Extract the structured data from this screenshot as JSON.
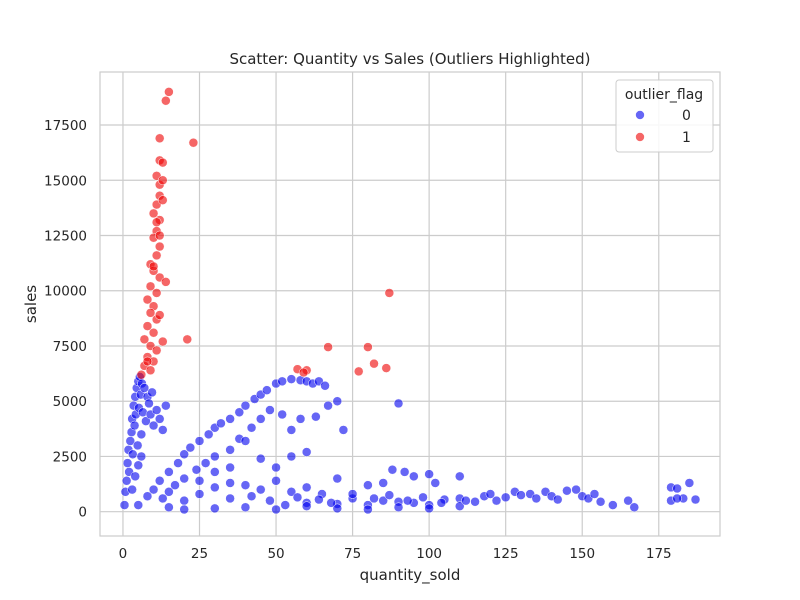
{
  "chart_data": {
    "type": "scatter",
    "title": "Scatter: Quantity vs Sales (Outliers Highlighted)",
    "xlabel": "quantity_sold",
    "ylabel": "sales",
    "xlim": [
      -7.5,
      195
    ],
    "ylim": [
      -1100,
      19900
    ],
    "x_ticks": [
      0,
      25,
      50,
      75,
      100,
      125,
      150,
      175
    ],
    "y_ticks": [
      0,
      2500,
      5000,
      7500,
      10000,
      12500,
      15000,
      17500
    ],
    "grid": true,
    "legend": {
      "title": "outlier_flag",
      "position": "top-right",
      "entries": [
        {
          "label": "0",
          "color": "#0000ee"
        },
        {
          "label": "1",
          "color": "#ee0000"
        }
      ]
    },
    "series": [
      {
        "name": "0",
        "color": "#0000ee",
        "points": [
          [
            0.5,
            300
          ],
          [
            0.8,
            900
          ],
          [
            1.2,
            1400
          ],
          [
            1.5,
            2200
          ],
          [
            1.8,
            2800
          ],
          [
            2.0,
            1800
          ],
          [
            2.4,
            3200
          ],
          [
            2.8,
            3600
          ],
          [
            3.0,
            4200
          ],
          [
            3.2,
            2600
          ],
          [
            3.5,
            4800
          ],
          [
            3.8,
            3900
          ],
          [
            4.0,
            5200
          ],
          [
            4.2,
            4400
          ],
          [
            4.5,
            5600
          ],
          [
            4.8,
            3000
          ],
          [
            5.0,
            5900
          ],
          [
            5.2,
            4700
          ],
          [
            5.5,
            6100
          ],
          [
            5.8,
            5300
          ],
          [
            6.0,
            3500
          ],
          [
            6.2,
            5800
          ],
          [
            6.5,
            4500
          ],
          [
            7.0,
            5600
          ],
          [
            7.5,
            4100
          ],
          [
            8.0,
            5200
          ],
          [
            8.5,
            4900
          ],
          [
            9.0,
            4400
          ],
          [
            9.5,
            5400
          ],
          [
            10.0,
            3900
          ],
          [
            11.0,
            4600
          ],
          [
            12.0,
            4200
          ],
          [
            13.0,
            3700
          ],
          [
            14.0,
            4800
          ],
          [
            3.0,
            1000
          ],
          [
            4.0,
            1600
          ],
          [
            5.0,
            2100
          ],
          [
            6.0,
            2500
          ],
          [
            5,
            300
          ],
          [
            8,
            700
          ],
          [
            10,
            1000
          ],
          [
            12,
            1400
          ],
          [
            15,
            1800
          ],
          [
            18,
            2200
          ],
          [
            20,
            2600
          ],
          [
            22,
            2900
          ],
          [
            25,
            3200
          ],
          [
            28,
            3500
          ],
          [
            30,
            3800
          ],
          [
            32,
            4000
          ],
          [
            35,
            4200
          ],
          [
            38,
            4500
          ],
          [
            40,
            4800
          ],
          [
            43,
            5100
          ],
          [
            45,
            5300
          ],
          [
            47,
            5500
          ],
          [
            50,
            5800
          ],
          [
            52,
            5900
          ],
          [
            55,
            6000
          ],
          [
            58,
            5950
          ],
          [
            60,
            5900
          ],
          [
            62,
            5800
          ],
          [
            64,
            5900
          ],
          [
            66,
            5700
          ],
          [
            70,
            5000
          ],
          [
            72,
            3700
          ],
          [
            67,
            4800
          ],
          [
            63,
            4300
          ],
          [
            58,
            4200
          ],
          [
            55,
            3700
          ],
          [
            52,
            4400
          ],
          [
            48,
            4600
          ],
          [
            45,
            4200
          ],
          [
            42,
            3800
          ],
          [
            38,
            3300
          ],
          [
            35,
            2800
          ],
          [
            30,
            2500
          ],
          [
            27,
            2200
          ],
          [
            24,
            1900
          ],
          [
            20,
            1500
          ],
          [
            17,
            1200
          ],
          [
            15,
            900
          ],
          [
            13,
            600
          ],
          [
            15,
            200
          ],
          [
            20,
            500
          ],
          [
            25,
            800
          ],
          [
            30,
            1100
          ],
          [
            35,
            1300
          ],
          [
            40,
            1200
          ],
          [
            45,
            1000
          ],
          [
            50,
            1400
          ],
          [
            55,
            900
          ],
          [
            60,
            1100
          ],
          [
            65,
            800
          ],
          [
            70,
            1500
          ],
          [
            75,
            600
          ],
          [
            80,
            1200
          ],
          [
            85,
            1300
          ],
          [
            88,
            1900
          ],
          [
            92,
            1800
          ],
          [
            95,
            1600
          ],
          [
            100,
            1700
          ],
          [
            102,
            1300
          ],
          [
            110,
            1600
          ],
          [
            90,
            4900
          ],
          [
            45,
            2400
          ],
          [
            60,
            2700
          ],
          [
            40,
            3200
          ],
          [
            50,
            2000
          ],
          [
            30,
            1800
          ],
          [
            25,
            1400
          ],
          [
            35,
            2000
          ],
          [
            55,
            2500
          ],
          [
            60,
            400
          ],
          [
            70,
            350
          ],
          [
            80,
            300
          ],
          [
            85,
            500
          ],
          [
            90,
            450
          ],
          [
            95,
            400
          ],
          [
            100,
            300
          ],
          [
            105,
            550
          ],
          [
            110,
            600
          ],
          [
            115,
            450
          ],
          [
            118,
            700
          ],
          [
            120,
            800
          ],
          [
            122,
            500
          ],
          [
            125,
            650
          ],
          [
            128,
            900
          ],
          [
            130,
            750
          ],
          [
            133,
            800
          ],
          [
            135,
            600
          ],
          [
            138,
            900
          ],
          [
            140,
            700
          ],
          [
            142,
            550
          ],
          [
            145,
            950
          ],
          [
            148,
            1000
          ],
          [
            150,
            700
          ],
          [
            152,
            600
          ],
          [
            154,
            800
          ],
          [
            156,
            450
          ],
          [
            160,
            300
          ],
          [
            165,
            500
          ],
          [
            167,
            200
          ],
          [
            179,
            1100
          ],
          [
            181,
            1050
          ],
          [
            183,
            600
          ],
          [
            185,
            1300
          ],
          [
            187,
            550
          ],
          [
            179,
            500
          ],
          [
            181,
            600
          ],
          [
            20,
            100
          ],
          [
            30,
            150
          ],
          [
            40,
            200
          ],
          [
            50,
            100
          ],
          [
            60,
            250
          ],
          [
            70,
            150
          ],
          [
            80,
            100
          ],
          [
            90,
            200
          ],
          [
            100,
            150
          ],
          [
            110,
            250
          ],
          [
            35,
            600
          ],
          [
            42,
            700
          ],
          [
            48,
            500
          ],
          [
            53,
            300
          ],
          [
            57,
            650
          ],
          [
            64,
            550
          ],
          [
            68,
            400
          ],
          [
            75,
            800
          ],
          [
            82,
            600
          ],
          [
            87,
            750
          ],
          [
            93,
            500
          ],
          [
            98,
            650
          ],
          [
            104,
            400
          ],
          [
            112,
            500
          ]
        ]
      },
      {
        "name": "1",
        "color": "#ee0000",
        "points": [
          [
            15,
            19000
          ],
          [
            14,
            18600
          ],
          [
            12,
            16900
          ],
          [
            23,
            16700
          ],
          [
            12,
            15900
          ],
          [
            13,
            15800
          ],
          [
            11,
            15200
          ],
          [
            12,
            14800
          ],
          [
            13,
            15000
          ],
          [
            12,
            14300
          ],
          [
            11,
            13900
          ],
          [
            10,
            13500
          ],
          [
            12,
            13200
          ],
          [
            11,
            12700
          ],
          [
            10,
            12400
          ],
          [
            12,
            12000
          ],
          [
            11,
            11600
          ],
          [
            9,
            11200
          ],
          [
            10,
            10900
          ],
          [
            12,
            10600
          ],
          [
            14,
            10400
          ],
          [
            9,
            10200
          ],
          [
            11,
            9900
          ],
          [
            8,
            9600
          ],
          [
            10,
            9300
          ],
          [
            9,
            9000
          ],
          [
            11,
            8700
          ],
          [
            8,
            8400
          ],
          [
            10,
            8100
          ],
          [
            7,
            7800
          ],
          [
            9,
            7500
          ],
          [
            11,
            7300
          ],
          [
            8,
            7000
          ],
          [
            10,
            6800
          ],
          [
            7,
            6600
          ],
          [
            9,
            6400
          ],
          [
            6,
            6200
          ],
          [
            8,
            6800
          ],
          [
            12,
            8900
          ],
          [
            13,
            7700
          ],
          [
            21,
            7800
          ],
          [
            67,
            7450
          ],
          [
            80,
            7450
          ],
          [
            87,
            9900
          ],
          [
            82,
            6700
          ],
          [
            86,
            6500
          ],
          [
            77,
            6350
          ],
          [
            57,
            6450
          ],
          [
            60,
            6400
          ],
          [
            59,
            6300
          ],
          [
            10,
            11100
          ],
          [
            12,
            12500
          ],
          [
            11,
            13100
          ],
          [
            13,
            14100
          ]
        ]
      }
    ]
  }
}
